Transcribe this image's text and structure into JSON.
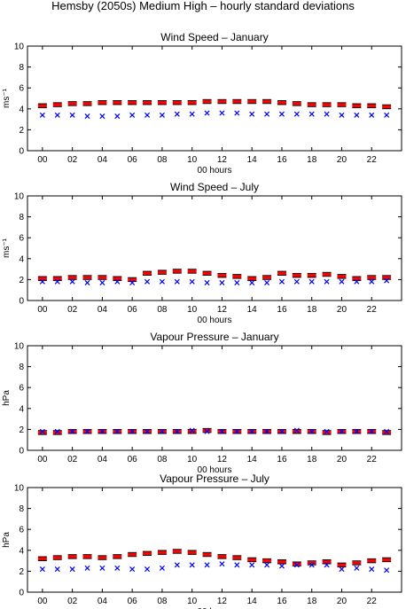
{
  "figure": {
    "title": "Hemsby (2050s) Medium High – hourly standard deviations"
  },
  "colors": {
    "scenario": "#ff0000",
    "whisker": "#000000",
    "observed": "#0000ff",
    "axis": "#000000"
  },
  "chart_data": [
    {
      "type": "scatter",
      "title": "Wind Speed – January",
      "ylabel": "ms⁻¹",
      "xlabel": "00 hours",
      "ylim": [
        0,
        10
      ],
      "yticks": [
        "0",
        "2",
        "4",
        "6",
        "8",
        "10"
      ],
      "xtick_labels": [
        "00",
        "02",
        "04",
        "06",
        "08",
        "10",
        "12",
        "14",
        "16",
        "18",
        "20",
        "22"
      ],
      "x": [
        0,
        1,
        2,
        3,
        4,
        5,
        6,
        7,
        8,
        9,
        10,
        11,
        12,
        13,
        14,
        15,
        16,
        17,
        18,
        19,
        20,
        21,
        22,
        23
      ],
      "series": [
        {
          "marker": "bar",
          "values": [
            4.3,
            4.4,
            4.5,
            4.5,
            4.6,
            4.6,
            4.6,
            4.6,
            4.6,
            4.6,
            4.6,
            4.7,
            4.7,
            4.7,
            4.7,
            4.7,
            4.6,
            4.5,
            4.4,
            4.4,
            4.4,
            4.3,
            4.3,
            4.2
          ]
        },
        {
          "marker": "x",
          "values": [
            3.4,
            3.4,
            3.4,
            3.3,
            3.3,
            3.3,
            3.4,
            3.4,
            3.4,
            3.5,
            3.5,
            3.6,
            3.6,
            3.6,
            3.5,
            3.5,
            3.5,
            3.5,
            3.5,
            3.5,
            3.4,
            3.4,
            3.4,
            3.4
          ]
        }
      ]
    },
    {
      "type": "scatter",
      "title": "Wind Speed – July",
      "ylabel": "ms⁻¹",
      "xlabel": "00 hours",
      "ylim": [
        0,
        10
      ],
      "yticks": [
        "0",
        "2",
        "4",
        "6",
        "8",
        "10"
      ],
      "xtick_labels": [
        "00",
        "02",
        "04",
        "06",
        "08",
        "10",
        "12",
        "14",
        "16",
        "18",
        "20",
        "22"
      ],
      "x": [
        0,
        1,
        2,
        3,
        4,
        5,
        6,
        7,
        8,
        9,
        10,
        11,
        12,
        13,
        14,
        15,
        16,
        17,
        18,
        19,
        20,
        21,
        22,
        23
      ],
      "series": [
        {
          "marker": "bar",
          "values": [
            2.1,
            2.1,
            2.2,
            2.2,
            2.2,
            2.1,
            2.0,
            2.6,
            2.7,
            2.8,
            2.8,
            2.6,
            2.4,
            2.3,
            2.1,
            2.2,
            2.6,
            2.4,
            2.4,
            2.5,
            2.3,
            2.1,
            2.2,
            2.2
          ]
        },
        {
          "marker": "x",
          "values": [
            1.8,
            1.8,
            1.8,
            1.7,
            1.7,
            1.8,
            1.7,
            1.8,
            1.8,
            1.8,
            1.8,
            1.7,
            1.7,
            1.7,
            1.7,
            1.7,
            1.8,
            1.8,
            1.8,
            1.8,
            1.8,
            1.8,
            1.8,
            1.9
          ]
        }
      ]
    },
    {
      "type": "scatter",
      "title": "Vapour Pressure – January",
      "ylabel": "hPa",
      "xlabel": "00 hours",
      "ylim": [
        0,
        10
      ],
      "yticks": [
        "0",
        "2",
        "4",
        "6",
        "8",
        "10"
      ],
      "xtick_labels": [
        "00",
        "02",
        "04",
        "06",
        "08",
        "10",
        "12",
        "14",
        "16",
        "18",
        "20",
        "22"
      ],
      "x": [
        0,
        1,
        2,
        3,
        4,
        5,
        6,
        7,
        8,
        9,
        10,
        11,
        12,
        13,
        14,
        15,
        16,
        17,
        18,
        19,
        20,
        21,
        22,
        23
      ],
      "series": [
        {
          "marker": "bar",
          "values": [
            1.7,
            1.7,
            1.8,
            1.8,
            1.8,
            1.8,
            1.8,
            1.8,
            1.8,
            1.8,
            1.8,
            1.9,
            1.8,
            1.8,
            1.8,
            1.8,
            1.8,
            1.8,
            1.8,
            1.7,
            1.8,
            1.8,
            1.8,
            1.7
          ]
        },
        {
          "marker": "x",
          "values": [
            1.8,
            1.8,
            1.8,
            1.8,
            1.8,
            1.8,
            1.8,
            1.8,
            1.8,
            1.8,
            1.9,
            1.8,
            1.8,
            1.8,
            1.8,
            1.8,
            1.8,
            1.9,
            1.8,
            1.8,
            1.8,
            1.8,
            1.8,
            1.8
          ]
        }
      ]
    },
    {
      "type": "scatter",
      "title": "Vapour Pressure – July",
      "ylabel": "hPa",
      "xlabel": "00 hours",
      "ylim": [
        0,
        10
      ],
      "yticks": [
        "0",
        "2",
        "4",
        "6",
        "8",
        "10"
      ],
      "xtick_labels": [
        "00",
        "02",
        "04",
        "06",
        "08",
        "10",
        "12",
        "14",
        "16",
        "18",
        "20",
        "22"
      ],
      "x": [
        0,
        1,
        2,
        3,
        4,
        5,
        6,
        7,
        8,
        9,
        10,
        11,
        12,
        13,
        14,
        15,
        16,
        17,
        18,
        19,
        20,
        21,
        22,
        23
      ],
      "series": [
        {
          "marker": "bar",
          "values": [
            3.2,
            3.3,
            3.4,
            3.4,
            3.3,
            3.4,
            3.6,
            3.7,
            3.8,
            3.9,
            3.8,
            3.6,
            3.4,
            3.3,
            3.1,
            3.0,
            2.9,
            2.7,
            2.8,
            2.9,
            2.6,
            2.8,
            3.0,
            3.1
          ]
        },
        {
          "marker": "x",
          "values": [
            2.2,
            2.2,
            2.2,
            2.3,
            2.3,
            2.3,
            2.2,
            2.2,
            2.3,
            2.6,
            2.6,
            2.6,
            2.7,
            2.6,
            2.6,
            2.6,
            2.5,
            2.6,
            2.6,
            2.6,
            2.2,
            2.3,
            2.2,
            2.1
          ]
        }
      ]
    }
  ]
}
